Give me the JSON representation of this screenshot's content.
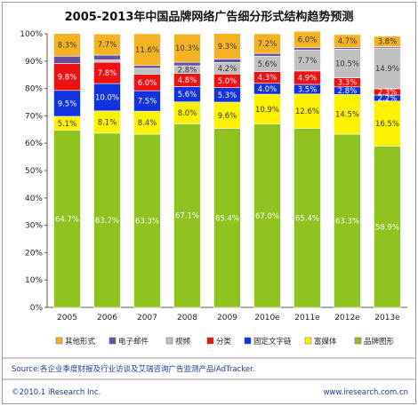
{
  "chart_data": {
    "type": "bar",
    "stacked": true,
    "title": "2005-2013年中国品牌网络广告细分形式结构趋势预测",
    "categories": [
      "2005",
      "2006",
      "2007",
      "2008",
      "2009",
      "2010e",
      "2011e",
      "2012e",
      "2013e"
    ],
    "ylim": [
      0,
      100
    ],
    "yticks": [
      "0%",
      "10%",
      "20%",
      "30%",
      "40%",
      "50%",
      "60%",
      "70%",
      "80%",
      "90%",
      "100%"
    ],
    "grid": false,
    "legend_position": "bottom",
    "series": [
      {
        "name": "品牌图形",
        "color": "#8dc21f",
        "label_color": "#ffffff",
        "values": [
          64.7,
          63.7,
          63.3,
          67.1,
          65.4,
          67.0,
          65.4,
          63.3,
          58.9
        ],
        "labels": [
          "64.7%",
          "63.7%",
          "63.3%",
          "67.1%",
          "65.4%",
          "67.0%",
          "65.4%",
          "63.3%",
          "58.9%"
        ]
      },
      {
        "name": "富媒体",
        "color": "#fff200",
        "label_color": "#333333",
        "values": [
          5.1,
          8.1,
          8.4,
          8.0,
          9.6,
          10.9,
          12.6,
          14.5,
          16.5
        ],
        "labels": [
          "5.1%",
          "8.1%",
          "8.4%",
          "8.0%",
          "9.6%",
          "10.9%",
          "12.6%",
          "14.5%",
          "16.5%"
        ]
      },
      {
        "name": "固定文字链",
        "color": "#1133dd",
        "label_color": "#ffffff",
        "values": [
          9.5,
          10.0,
          7.5,
          5.6,
          5.3,
          4.0,
          3.5,
          2.8,
          2.2
        ],
        "labels": [
          "9.5%",
          "10.0%",
          "7.5%",
          "5.6%",
          "5.3%",
          "4.0%",
          "3.5%",
          "2.8%",
          "2.2%"
        ]
      },
      {
        "name": "分类",
        "color": "#ee1111",
        "label_color": "#ffffff",
        "values": [
          9.8,
          7.8,
          6.0,
          4.8,
          5.0,
          4.3,
          4.9,
          3.3,
          2.3
        ],
        "labels": [
          "9.8%",
          "7.8%",
          "6.0%",
          "4.8%",
          "5.0%",
          "4.3%",
          "4.9%",
          "3.3%",
          "2.3%"
        ]
      },
      {
        "name": "视频",
        "color": "#c0c0c0",
        "label_color": "#333333",
        "values": [
          0.0,
          0.9,
          2.2,
          2.8,
          4.2,
          5.6,
          7.7,
          10.5,
          14.9
        ],
        "labels": [
          "",
          "",
          "",
          "2.8%",
          "4.2%",
          "5.6%",
          "7.7%",
          "10.5%",
          "14.9%"
        ]
      },
      {
        "name": "电子邮件",
        "color": "#6a4fa0",
        "label_color": "#ffffff",
        "values": [
          2.7,
          1.7,
          1.0,
          1.3,
          1.3,
          1.0,
          0.8,
          0.6,
          0.5
        ],
        "labels": [
          "",
          "",
          "",
          "",
          "",
          "",
          "",
          "",
          ""
        ]
      },
      {
        "name": "其他形式",
        "color": "#f5b324",
        "label_color": "#333333",
        "values": [
          8.3,
          7.7,
          11.6,
          10.3,
          9.3,
          7.2,
          6.0,
          4.7,
          3.8
        ],
        "labels": [
          "8.3%",
          "7.7%",
          "11.6%",
          "10.3%",
          "9.3%",
          "7.2%",
          "6.0%",
          "4.7%",
          "3.8%"
        ]
      }
    ],
    "legend_order": [
      "其他形式",
      "电子邮件",
      "视频",
      "分类",
      "固定文字链",
      "富媒体",
      "品牌图形"
    ],
    "source": "Source:各企业季度财报及行业访谈及艾瑞咨询广告监测产品iAdTracker.",
    "copyright": "©2010.1 iResearch Inc.",
    "website": "www.iresearch.com.cn"
  }
}
